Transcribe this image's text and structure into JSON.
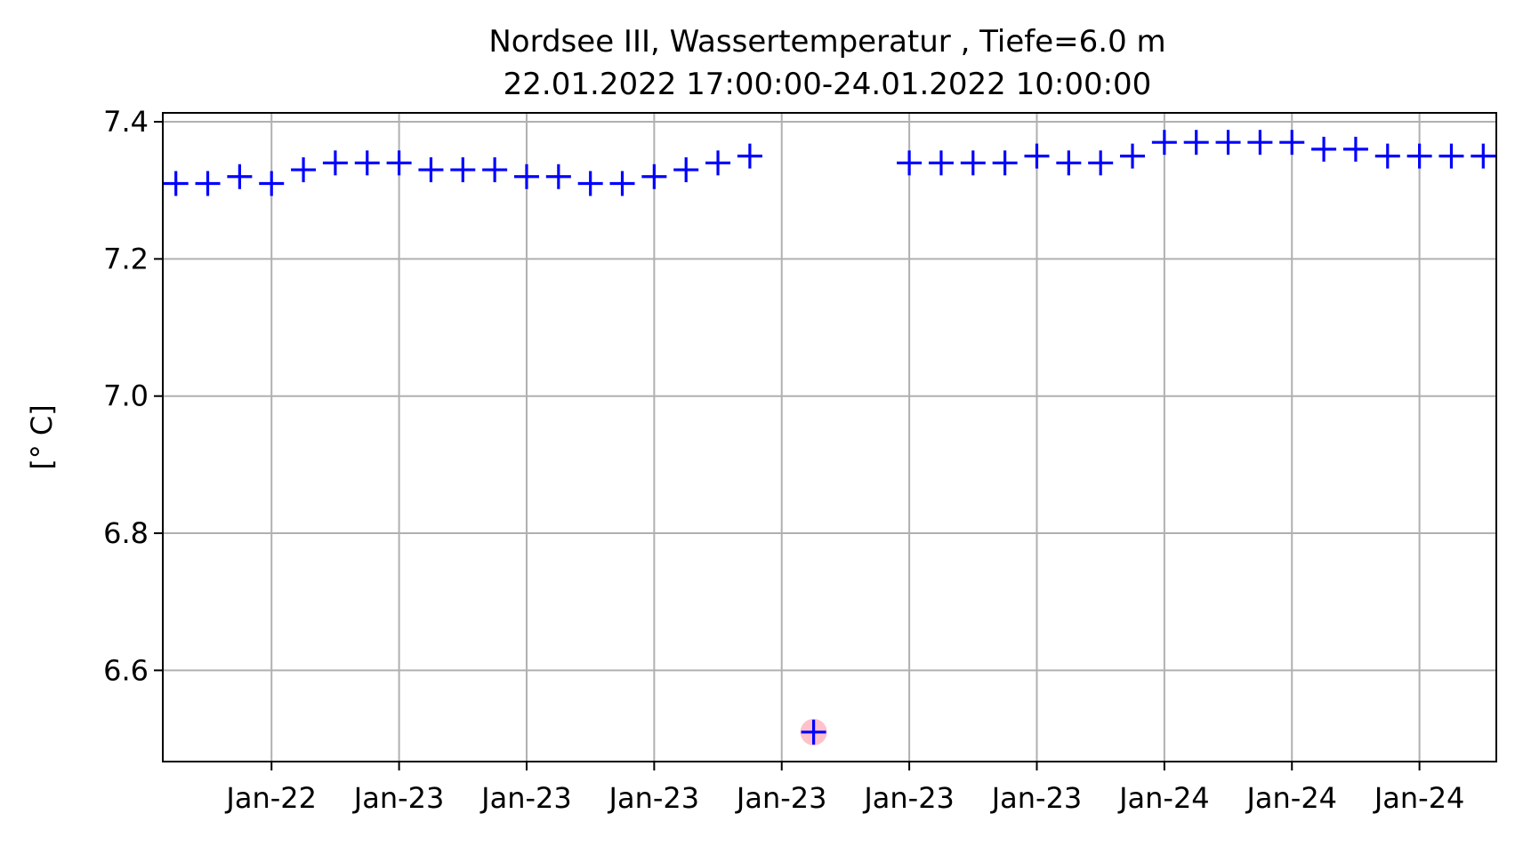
{
  "chart_data": {
    "type": "scatter",
    "title": "Nordsee III, Wassertemperatur , Tiefe=6.0 m",
    "subtitle": "22.01.2022 17:00:00-24.01.2022 10:00:00",
    "xlabel": "",
    "ylabel": "[° C]",
    "x_range": [
      "2022-01-22T17:00",
      "2022-01-24T10:00"
    ],
    "ylim": [
      6.467,
      7.413
    ],
    "yticks": [
      6.6,
      6.8,
      7.0,
      7.2,
      7.4
    ],
    "ytick_labels": [
      "6.6",
      "6.8",
      "7.0",
      "7.2",
      "7.4"
    ],
    "xticks": [
      "2022-01-22T20:00",
      "2022-01-23T00:00",
      "2022-01-23T04:00",
      "2022-01-23T08:00",
      "2022-01-23T12:00",
      "2022-01-23T16:00",
      "2022-01-23T20:00",
      "2022-01-24T00:00",
      "2022-01-24T04:00",
      "2022-01-24T08:00"
    ],
    "xtick_labels": [
      "Jan-22",
      "Jan-23",
      "Jan-23",
      "Jan-23",
      "Jan-23",
      "Jan-23",
      "Jan-23",
      "Jan-24",
      "Jan-24",
      "Jan-24"
    ],
    "grid": true,
    "marker": "+",
    "marker_color": "#0000ff",
    "flag_color": "#ffb6c1",
    "series": [
      {
        "x": [
          "2022-01-22T17:00",
          "2022-01-22T18:00",
          "2022-01-22T19:00",
          "2022-01-22T20:00",
          "2022-01-22T21:00",
          "2022-01-22T22:00",
          "2022-01-22T23:00",
          "2022-01-23T00:00",
          "2022-01-23T01:00",
          "2022-01-23T02:00",
          "2022-01-23T03:00",
          "2022-01-23T04:00",
          "2022-01-23T05:00",
          "2022-01-23T06:00",
          "2022-01-23T07:00",
          "2022-01-23T08:00",
          "2022-01-23T09:00",
          "2022-01-23T10:00",
          "2022-01-23T11:00",
          "2022-01-23T13:00",
          "2022-01-23T16:00",
          "2022-01-23T17:00",
          "2022-01-23T18:00",
          "2022-01-23T19:00",
          "2022-01-23T20:00",
          "2022-01-23T21:00",
          "2022-01-23T22:00",
          "2022-01-23T23:00",
          "2022-01-24T00:00",
          "2022-01-24T01:00",
          "2022-01-24T02:00",
          "2022-01-24T03:00",
          "2022-01-24T04:00",
          "2022-01-24T05:00",
          "2022-01-24T06:00",
          "2022-01-24T07:00",
          "2022-01-24T08:00",
          "2022-01-24T09:00",
          "2022-01-24T10:00"
        ],
        "y": [
          7.31,
          7.31,
          7.32,
          7.31,
          7.33,
          7.34,
          7.34,
          7.34,
          7.33,
          7.33,
          7.33,
          7.32,
          7.32,
          7.31,
          7.31,
          7.32,
          7.33,
          7.34,
          7.35,
          6.51,
          7.34,
          7.34,
          7.34,
          7.34,
          7.35,
          7.34,
          7.34,
          7.35,
          7.37,
          7.37,
          7.37,
          7.37,
          7.37,
          7.36,
          7.36,
          7.35,
          7.35,
          7.35,
          7.35
        ],
        "flagged": [
          false,
          false,
          false,
          false,
          false,
          false,
          false,
          false,
          false,
          false,
          false,
          false,
          false,
          false,
          false,
          false,
          false,
          false,
          false,
          true,
          false,
          false,
          false,
          false,
          false,
          false,
          false,
          false,
          false,
          false,
          false,
          false,
          false,
          false,
          false,
          false,
          false,
          false,
          false
        ]
      }
    ]
  }
}
